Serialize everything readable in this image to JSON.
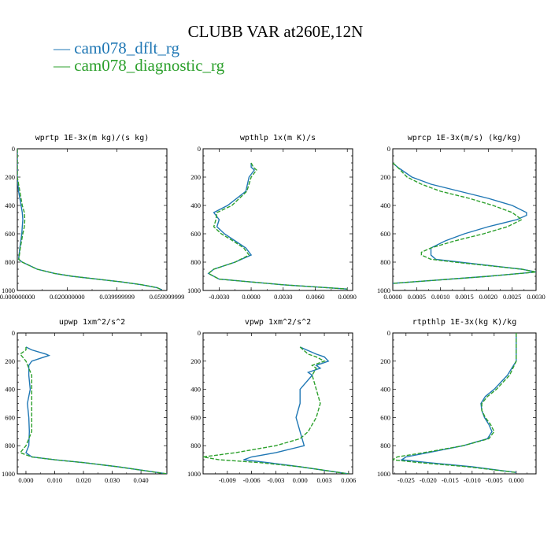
{
  "title": "CLUBB VAR at260E,12N",
  "legend": [
    {
      "label": "cam078_dflt_rg",
      "color": "#1f77b4"
    },
    {
      "label": "cam078_diagnostic_rg",
      "color": "#2ca02c"
    }
  ],
  "chart_data": [
    {
      "type": "line",
      "title": "wprtp  1E-3x(m kg)/(s kg)",
      "xlim": [
        0,
        0.06
      ],
      "ylim": [
        1000,
        0
      ],
      "yticks": [
        0,
        200,
        400,
        600,
        800,
        1000
      ],
      "xticks": [
        0,
        0.02,
        0.04,
        0.06
      ],
      "xticklabels": [
        "0.000000000",
        "0.020000000",
        "0.039999999",
        "0.059999999"
      ],
      "series": [
        {
          "y": [
            0,
            100,
            200,
            300,
            400,
            450,
            500,
            550,
            600,
            700,
            780,
            800,
            850,
            880,
            900,
            920,
            940,
            960,
            980,
            995
          ],
          "x": [
            0,
            0,
            0,
            0.0005,
            0.0015,
            0.002,
            0.0022,
            0.002,
            0.0018,
            0.001,
            0.0005,
            0.002,
            0.008,
            0.015,
            0.022,
            0.032,
            0.042,
            0.05,
            0.056,
            0.058
          ]
        },
        {
          "y": [
            0,
            100,
            200,
            300,
            400,
            450,
            500,
            550,
            600,
            700,
            780,
            800,
            850,
            880,
            900,
            920,
            940,
            960,
            980,
            995
          ],
          "x": [
            0,
            0,
            0,
            0.001,
            0.002,
            0.0028,
            0.003,
            0.0028,
            0.0022,
            0.0012,
            0.0006,
            0.002,
            0.008,
            0.015,
            0.022,
            0.032,
            0.042,
            0.05,
            0.056,
            0.058
          ]
        }
      ]
    },
    {
      "type": "line",
      "title": "wpthlp  1x(m K)/s",
      "xlim": [
        -0.0045,
        0.0095
      ],
      "ylim": [
        1000,
        0
      ],
      "yticks": [
        0,
        200,
        400,
        600,
        800,
        1000
      ],
      "xticks": [
        -0.003,
        0,
        0.003,
        0.006,
        0.009
      ],
      "xticklabels": [
        "-0.0030",
        "0.0000",
        "0.0030",
        "0.0060",
        "0.0090"
      ],
      "series": [
        {
          "y": [
            100,
            130,
            150,
            200,
            300,
            400,
            450,
            500,
            550,
            600,
            650,
            700,
            750,
            800,
            850,
            880,
            920,
            960,
            990
          ],
          "x": [
            0,
            0,
            0.0003,
            -0.0002,
            -0.0005,
            -0.0022,
            -0.0035,
            -0.003,
            -0.0032,
            -0.0025,
            -0.0015,
            -0.0005,
            0,
            -0.0015,
            -0.0035,
            -0.004,
            -0.003,
            0.003,
            0.009
          ]
        },
        {
          "y": [
            100,
            130,
            150,
            200,
            300,
            400,
            450,
            500,
            550,
            600,
            650,
            700,
            750,
            800,
            850,
            880,
            920,
            960,
            990
          ],
          "x": [
            0,
            0.0002,
            0.0005,
            0,
            -0.0004,
            -0.0018,
            -0.0032,
            -0.0033,
            -0.0035,
            -0.0028,
            -0.0017,
            -0.0007,
            -0.0002,
            -0.0015,
            -0.0035,
            -0.004,
            -0.003,
            0.003,
            0.009
          ]
        }
      ]
    },
    {
      "type": "line",
      "title": "wprcp  1E-3x(m/s) (kg/kg)",
      "xlim": [
        0,
        0.003
      ],
      "ylim": [
        1000,
        0
      ],
      "yticks": [
        0,
        200,
        400,
        600,
        800,
        1000
      ],
      "xticks": [
        0,
        0.0005,
        0.001,
        0.0015,
        0.002,
        0.0025,
        0.003
      ],
      "xticklabels": [
        "0.0000",
        "0.0005",
        "0.0010",
        "0.0015",
        "0.0020",
        "0.0025",
        "0.0030"
      ],
      "series": [
        {
          "y": [
            100,
            130,
            200,
            250,
            300,
            350,
            400,
            450,
            470,
            500,
            550,
            600,
            650,
            700,
            750,
            780,
            800,
            850,
            870,
            900,
            950
          ],
          "x": [
            0,
            0.0001,
            0.0004,
            0.0008,
            0.0014,
            0.002,
            0.0025,
            0.0028,
            0.0028,
            0.0026,
            0.002,
            0.0015,
            0.0011,
            0.0008,
            0.0008,
            0.0009,
            0.0014,
            0.0027,
            0.003,
            0.002,
            0
          ]
        },
        {
          "y": [
            100,
            130,
            200,
            250,
            300,
            350,
            400,
            450,
            500,
            550,
            600,
            650,
            700,
            730,
            750,
            780,
            800,
            850,
            870,
            900,
            950
          ],
          "x": [
            0,
            0.0001,
            0.0003,
            0.0006,
            0.001,
            0.0016,
            0.0021,
            0.0025,
            0.0027,
            0.0024,
            0.0019,
            0.0013,
            0.0008,
            0.0006,
            0.0006,
            0.0008,
            0.0013,
            0.0027,
            0.003,
            0.002,
            0
          ]
        }
      ]
    },
    {
      "type": "line",
      "title": "upwp  1xm^2/s^2",
      "xlim": [
        -0.003,
        0.049
      ],
      "ylim": [
        1000,
        0
      ],
      "yticks": [
        0,
        200,
        400,
        600,
        800,
        1000
      ],
      "xticks": [
        0,
        0.01,
        0.02,
        0.03,
        0.04
      ],
      "xticklabels": [
        "0.000",
        "0.010",
        "0.020",
        "0.030",
        "0.040"
      ],
      "series": [
        {
          "y": [
            100,
            120,
            150,
            160,
            180,
            200,
            230,
            300,
            400,
            500,
            600,
            700,
            800,
            850,
            880,
            900,
            920,
            950,
            1000
          ],
          "x": [
            0,
            0.002,
            0.007,
            0.008,
            0.005,
            0.002,
            0.001,
            0.001,
            0.0015,
            0.0005,
            0.001,
            0.0012,
            0.001,
            0,
            0.002,
            0.01,
            0.02,
            0.032,
            0.049
          ]
        },
        {
          "y": [
            100,
            120,
            150,
            200,
            250,
            300,
            400,
            500,
            600,
            700,
            800,
            850,
            880,
            900,
            920,
            950,
            1000
          ],
          "x": [
            0,
            0,
            -0.002,
            0,
            0.001,
            0.002,
            0.002,
            0.002,
            0.002,
            0.002,
            0,
            -0.002,
            0.002,
            0.01,
            0.02,
            0.032,
            0.049
          ]
        }
      ]
    },
    {
      "type": "line",
      "title": "vpwp  1xm^2/s^2",
      "xlim": [
        -0.012,
        0.0065
      ],
      "ylim": [
        1000,
        0
      ],
      "yticks": [
        0,
        200,
        400,
        600,
        800,
        1000
      ],
      "xticks": [
        -0.009,
        -0.006,
        -0.003,
        0,
        0.003,
        0.006
      ],
      "xticklabels": [
        "-0.009",
        "-0.006",
        "-0.003",
        "0.000",
        "0.003",
        "0.006"
      ],
      "series": [
        {
          "y": [
            100,
            150,
            170,
            200,
            230,
            250,
            280,
            300,
            400,
            500,
            600,
            700,
            800,
            850,
            880,
            900,
            920,
            950,
            1000
          ],
          "x": [
            0,
            0.002,
            0.003,
            0.0035,
            0.002,
            0.0025,
            0.001,
            0.0015,
            0,
            0,
            -0.0005,
            0,
            0.0005,
            -0.003,
            -0.006,
            -0.007,
            -0.004,
            0,
            0.006
          ]
        },
        {
          "y": [
            100,
            150,
            170,
            200,
            230,
            250,
            300,
            400,
            500,
            600,
            700,
            750,
            800,
            850,
            880,
            900,
            920,
            950,
            1000
          ],
          "x": [
            0,
            0.001,
            0.002,
            0.003,
            0.0015,
            0.002,
            0.0015,
            0.002,
            0.0025,
            0.002,
            0.001,
            0,
            -0.003,
            -0.008,
            -0.012,
            -0.01,
            -0.005,
            0,
            0.006
          ]
        }
      ]
    },
    {
      "type": "line",
      "title": "rtpthlp  1E-3x(kg K)/kg",
      "xlim": [
        -0.028,
        0.0045
      ],
      "ylim": [
        1000,
        0
      ],
      "yticks": [
        0,
        200,
        400,
        600,
        800,
        1000
      ],
      "xticks": [
        -0.025,
        -0.02,
        -0.015,
        -0.01,
        -0.005,
        0
      ],
      "xticklabels": [
        "-0.025",
        "-0.020",
        "-0.015",
        "-0.010",
        "-0.005",
        "0.000"
      ],
      "series": [
        {
          "y": [
            0,
            100,
            200,
            300,
            400,
            450,
            500,
            550,
            600,
            650,
            700,
            750,
            800,
            850,
            880,
            900,
            920,
            950,
            990
          ],
          "x": [
            0,
            0,
            0,
            -0.002,
            -0.005,
            -0.007,
            -0.008,
            -0.0078,
            -0.0072,
            -0.0062,
            -0.0055,
            -0.0065,
            -0.012,
            -0.02,
            -0.025,
            -0.026,
            -0.02,
            -0.01,
            0
          ]
        },
        {
          "y": [
            0,
            100,
            200,
            300,
            400,
            450,
            500,
            550,
            600,
            650,
            700,
            750,
            800,
            850,
            880,
            900,
            920,
            950,
            990
          ],
          "x": [
            0,
            0,
            0,
            -0.0015,
            -0.0045,
            -0.0065,
            -0.0078,
            -0.0078,
            -0.007,
            -0.0058,
            -0.005,
            -0.0062,
            -0.012,
            -0.021,
            -0.027,
            -0.028,
            -0.022,
            -0.011,
            0
          ]
        }
      ]
    }
  ]
}
